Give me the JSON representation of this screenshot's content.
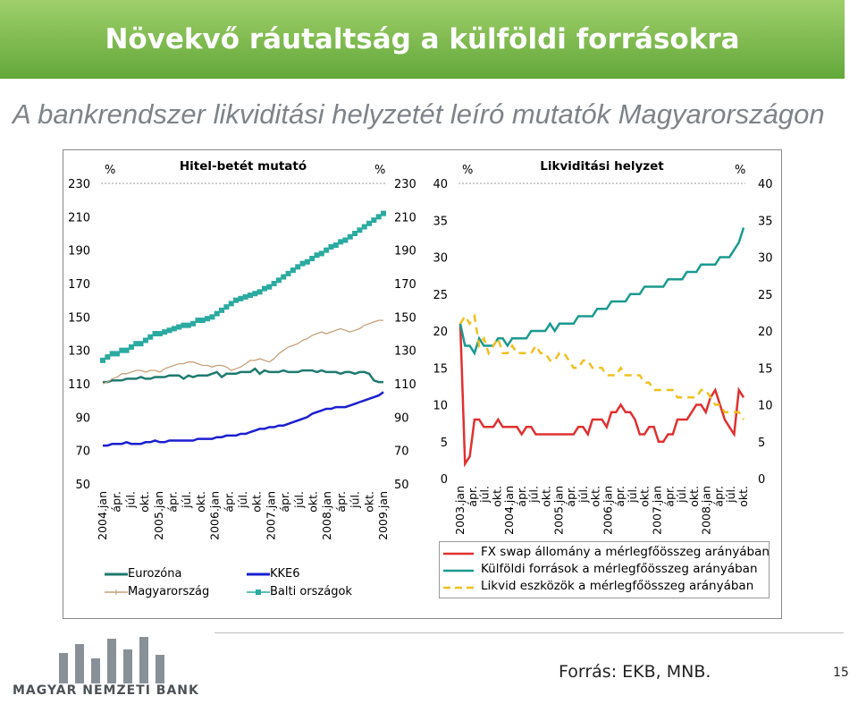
{
  "header": {
    "title": "Növekvő ráutaltság a külföldi forrásokra",
    "subtitle": "A bankrendszer likviditási helyzetét leíró mutatók Magyarországon"
  },
  "footer": {
    "bank_name": "MAGYAR NEMZETI BANK",
    "source": "Forrás: EKB, MNB.",
    "page": "15"
  },
  "colors": {
    "banner": "#63a83a",
    "eurozone": "#1f7a6f",
    "hungary": "#c5a07a",
    "kke6": "#1a1fd0",
    "baltic": "#2aaaa0",
    "fx_swap": "#e03030",
    "foreign": "#1a9a90",
    "liquid": "#f0c020"
  },
  "chart_data": [
    {
      "type": "line",
      "title": "Hitel-betét mutató",
      "left_unit": "%",
      "right_unit": "%",
      "ylim": [
        50,
        230
      ],
      "yticks": [
        "50",
        "70",
        "90",
        "110",
        "130",
        "150",
        "170",
        "190",
        "210",
        "230"
      ],
      "x_start": "2004.jan",
      "x_end": "2009.jan",
      "xtick_labels": [
        "2004.jan",
        "ápr.",
        "júl.",
        "okt.",
        "2005.jan",
        "ápr.",
        "júl.",
        "okt.",
        "2006.jan",
        "ápr.",
        "júl.",
        "okt.",
        "2007.jan",
        "ápr.",
        "júl.",
        "okt.",
        "2008.jan",
        "ápr.",
        "júl.",
        "okt.",
        "2009.jan"
      ],
      "series": [
        {
          "name": "Eurozóna",
          "key": "eurozone",
          "style": "solid",
          "values": [
            111,
            111,
            112,
            112,
            112,
            113,
            113,
            113,
            114,
            113,
            113,
            114,
            114,
            114,
            115,
            115,
            115,
            113,
            115,
            114,
            115,
            115,
            115,
            116,
            117,
            114,
            116,
            116,
            116,
            117,
            117,
            117,
            119,
            116,
            118,
            117,
            117,
            117,
            118,
            117,
            117,
            117,
            118,
            118,
            118,
            117,
            118,
            117,
            117,
            117,
            116,
            117,
            117,
            116,
            117,
            117,
            116,
            112,
            111,
            111
          ]
        },
        {
          "name": "Magyarország",
          "key": "hungary",
          "style": "thin-dash",
          "values": [
            110,
            111,
            113,
            114,
            116,
            116,
            117,
            118,
            118,
            117,
            118,
            118,
            117,
            119,
            120,
            121,
            122,
            122,
            123,
            123,
            122,
            121,
            121,
            120,
            121,
            121,
            120,
            118,
            119,
            120,
            122,
            124,
            124,
            125,
            124,
            123,
            125,
            128,
            130,
            132,
            133,
            134,
            136,
            137,
            139,
            140,
            141,
            140,
            141,
            142,
            143,
            142,
            141,
            142,
            143,
            145,
            146,
            147,
            148,
            148
          ]
        },
        {
          "name": "KKE6",
          "key": "kke6",
          "style": "solid",
          "values": [
            73,
            73,
            74,
            74,
            74,
            75,
            74,
            74,
            74,
            75,
            75,
            76,
            75,
            75,
            76,
            76,
            76,
            76,
            76,
            76,
            77,
            77,
            77,
            77,
            78,
            78,
            79,
            79,
            79,
            80,
            80,
            81,
            82,
            83,
            83,
            84,
            84,
            85,
            85,
            86,
            87,
            88,
            89,
            90,
            92,
            93,
            94,
            95,
            95,
            96,
            96,
            96,
            97,
            98,
            99,
            100,
            101,
            102,
            103,
            105
          ]
        },
        {
          "name": "Balti országok",
          "key": "baltic",
          "style": "square-markers",
          "values": [
            124,
            126,
            128,
            128,
            130,
            130,
            132,
            134,
            134,
            136,
            138,
            140,
            140,
            141,
            142,
            143,
            144,
            145,
            145,
            146,
            148,
            148,
            149,
            150,
            152,
            154,
            156,
            158,
            160,
            161,
            162,
            163,
            164,
            165,
            167,
            168,
            170,
            172,
            174,
            176,
            178,
            180,
            182,
            183,
            185,
            187,
            188,
            190,
            192,
            193,
            195,
            196,
            198,
            200,
            202,
            204,
            206,
            208,
            210,
            212
          ]
        }
      ]
    },
    {
      "type": "line",
      "title": "Likviditási helyzet",
      "left_unit": "%",
      "right_unit": "%",
      "ylim": [
        0,
        40
      ],
      "yticks": [
        "0",
        "5",
        "10",
        "15",
        "20",
        "25",
        "30",
        "35",
        "40"
      ],
      "x_start": "2003.jan",
      "x_end": "2008.okt.",
      "xtick_labels": [
        "2003.jan",
        "ápr.",
        "júl.",
        "okt.",
        "2004.jan",
        "ápr.",
        "júl.",
        "okt.",
        "2005.jan",
        "ápr.",
        "júl.",
        "okt.",
        "2006.jan",
        "ápr.",
        "júl.",
        "okt.",
        "2007.jan",
        "ápr.",
        "júl.",
        "okt.",
        "2008.jan",
        "ápr.",
        "júl.",
        "okt."
      ],
      "series": [
        {
          "name": "FX swap állomány a mérlegfőösszeg arányában",
          "key": "fx_swap",
          "style": "solid",
          "values": [
            21,
            2,
            3,
            8,
            8,
            7,
            7,
            7,
            8,
            7,
            7,
            7,
            7,
            6,
            7,
            7,
            6,
            6,
            6,
            6,
            6,
            6,
            6,
            6,
            6,
            7,
            7,
            6,
            8,
            8,
            8,
            7,
            9,
            9,
            10,
            9,
            9,
            8,
            6,
            6,
            7,
            7,
            5,
            5,
            6,
            6,
            8,
            8,
            8,
            9,
            10,
            10,
            9,
            11,
            12,
            10,
            8,
            7,
            6,
            12,
            11
          ]
        },
        {
          "name": "Külföldi források a mérlegfőösszeg arányában",
          "key": "foreign",
          "style": "solid",
          "values": [
            21,
            18,
            18,
            17,
            19,
            18,
            18,
            18,
            19,
            19,
            18,
            19,
            19,
            19,
            19,
            20,
            20,
            20,
            20,
            21,
            20,
            21,
            21,
            21,
            21,
            22,
            22,
            22,
            22,
            23,
            23,
            23,
            24,
            24,
            24,
            24,
            25,
            25,
            25,
            26,
            26,
            26,
            26,
            26,
            27,
            27,
            27,
            27,
            28,
            28,
            28,
            29,
            29,
            29,
            29,
            30,
            30,
            30,
            31,
            32,
            34
          ]
        },
        {
          "name": "Likvid eszközök a mérlegfőösszeg arányában",
          "key": "liquid",
          "style": "dashed",
          "values": [
            21,
            22,
            21,
            22,
            18,
            19,
            17,
            18,
            19,
            17,
            17,
            18,
            17,
            17,
            17,
            17,
            18,
            17,
            17,
            16,
            16,
            17,
            17,
            16,
            15,
            15,
            16,
            16,
            15,
            15,
            15,
            14,
            14,
            14,
            15,
            14,
            14,
            14,
            14,
            13,
            13,
            12,
            12,
            12,
            12,
            12,
            11,
            11,
            11,
            11,
            11,
            12,
            12,
            11,
            10,
            10,
            9,
            9,
            9,
            9,
            8
          ]
        }
      ]
    }
  ]
}
